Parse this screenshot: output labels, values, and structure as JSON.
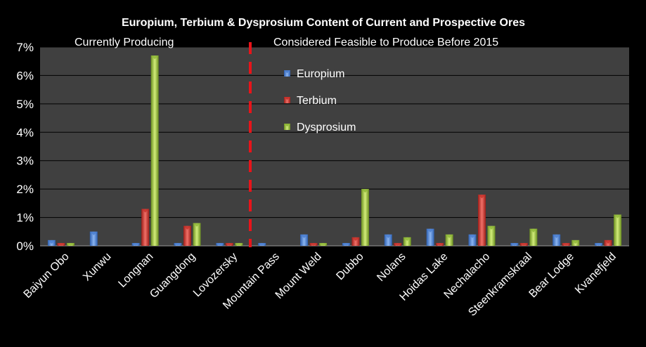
{
  "chart_data": {
    "type": "bar",
    "title": "Europium, Terbium & Dysprosium Content of Current and Prospective Ores",
    "xlabel": "",
    "ylabel": "",
    "ylim": [
      0,
      7
    ],
    "yticks": [
      "0%",
      "1%",
      "2%",
      "3%",
      "4%",
      "5%",
      "6%",
      "7%"
    ],
    "grid": true,
    "legend_position": "upper-middle",
    "categories": [
      "Baiyun Obo",
      "Xunwu",
      "Longnan",
      "Guangdong",
      "Lovozersky",
      "Mountain Pass",
      "Mount Weld",
      "Dubbo",
      "Nolans",
      "Hoidas Lake",
      "Nechalacho",
      "Steenkramskraal",
      "Bear Lodge",
      "Kvanefjeld"
    ],
    "series": [
      {
        "name": "Europium",
        "color": "#4a7ed0",
        "values": [
          0.2,
          0.5,
          0.1,
          0.1,
          0.1,
          0.1,
          0.4,
          0.1,
          0.4,
          0.6,
          0.4,
          0.1,
          0.4,
          0.1
        ]
      },
      {
        "name": "Terbium",
        "color": "#c8322c",
        "values": [
          0.1,
          0.0,
          1.3,
          0.7,
          0.1,
          0.0,
          0.1,
          0.3,
          0.1,
          0.1,
          1.8,
          0.1,
          0.1,
          0.2
        ]
      },
      {
        "name": "Dysprosium",
        "color": "#8fb838",
        "values": [
          0.1,
          0.0,
          6.7,
          0.8,
          0.1,
          0.0,
          0.1,
          2.0,
          0.3,
          0.4,
          0.7,
          0.6,
          0.2,
          1.1
        ]
      }
    ],
    "annotations": {
      "left_group": "Currently Producing",
      "right_group": "Considered Feasible to Produce Before 2015",
      "divider_color": "#e8141a"
    },
    "plot_background": "#404040"
  }
}
